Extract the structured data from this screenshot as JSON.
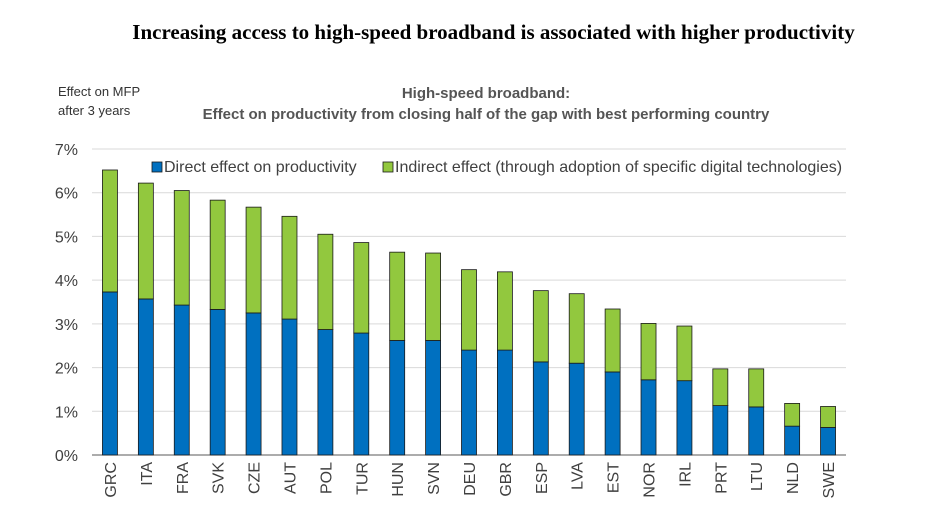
{
  "page": {
    "title": "Increasing access to high-speed broadband is associated with higher productivity"
  },
  "chart_data": {
    "type": "bar",
    "stacked": true,
    "title": "High-speed broadband:",
    "subtitle": "Effect on productivity from closing half of the gap with best performing country",
    "ylabel_line1": "Effect on MFP",
    "ylabel_line2": "after 3 years",
    "xlabel": "",
    "ylim": [
      0,
      7
    ],
    "yticks": [
      "0%",
      "1%",
      "2%",
      "3%",
      "4%",
      "5%",
      "6%",
      "7%"
    ],
    "grid": true,
    "legend_position": "top",
    "categories": [
      "GRC",
      "ITA",
      "FRA",
      "SVK",
      "CZE",
      "AUT",
      "POL",
      "TUR",
      "HUN",
      "SVN",
      "DEU",
      "GBR",
      "ESP",
      "LVA",
      "EST",
      "NOR",
      "IRL",
      "PRT",
      "LTU",
      "NLD",
      "SWE"
    ],
    "series": [
      {
        "name": "Direct effect on productivity",
        "color": "#0070C0",
        "values": [
          3.73,
          3.57,
          3.43,
          3.33,
          3.25,
          3.11,
          2.87,
          2.79,
          2.62,
          2.62,
          2.4,
          2.4,
          2.13,
          2.1,
          1.9,
          1.72,
          1.7,
          1.13,
          1.1,
          0.66,
          0.63
        ]
      },
      {
        "name": "Indirect effect (through adoption of specific digital technologies)",
        "color": "#92C83E",
        "values": [
          2.79,
          2.65,
          2.62,
          2.5,
          2.42,
          2.35,
          2.18,
          2.07,
          2.02,
          2.0,
          1.84,
          1.79,
          1.63,
          1.59,
          1.44,
          1.29,
          1.25,
          0.84,
          0.87,
          0.52,
          0.48
        ]
      }
    ]
  }
}
